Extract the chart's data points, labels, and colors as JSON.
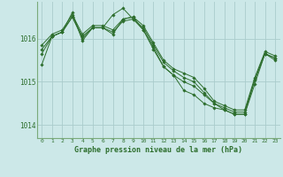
{
  "background_color": "#cce8e8",
  "plot_bg_color": "#cce8e8",
  "grid_color": "#aacccc",
  "line_color": "#2d6e2d",
  "marker_color": "#2d6e2d",
  "xlabel": "Graphe pression niveau de la mer (hPa)",
  "ylim": [
    1013.7,
    1016.85
  ],
  "yticks": [
    1014,
    1015,
    1016
  ],
  "xlim": [
    -0.5,
    23.5
  ],
  "xticks": [
    0,
    1,
    2,
    3,
    4,
    5,
    6,
    7,
    8,
    9,
    10,
    11,
    12,
    13,
    14,
    15,
    16,
    17,
    18,
    19,
    20,
    21,
    22,
    23
  ],
  "series": [
    [
      1015.75,
      1016.05,
      1016.15,
      1016.5,
      1016.05,
      1016.25,
      1016.25,
      1016.15,
      1016.4,
      1016.45,
      1016.25,
      1015.85,
      1015.45,
      1015.25,
      1015.1,
      1015.0,
      1014.75,
      1014.5,
      1014.4,
      1014.3,
      1014.3,
      1015.05,
      1015.65,
      1015.55
    ],
    [
      1015.85,
      1016.1,
      1016.2,
      1016.55,
      1016.1,
      1016.3,
      1016.3,
      1016.2,
      1016.45,
      1016.5,
      1016.3,
      1015.9,
      1015.5,
      1015.3,
      1015.2,
      1015.1,
      1014.85,
      1014.55,
      1014.45,
      1014.35,
      1014.35,
      1015.1,
      1015.7,
      1015.6
    ],
    [
      1015.4,
      1016.05,
      1016.15,
      1016.6,
      1015.95,
      1016.25,
      1016.25,
      1016.55,
      1016.7,
      1016.45,
      1016.2,
      1015.75,
      1015.35,
      1015.15,
      1014.8,
      1014.7,
      1014.5,
      1014.4,
      1014.35,
      1014.25,
      1014.25,
      1014.95,
      1015.65,
      1015.5
    ],
    [
      1015.65,
      1016.05,
      1016.15,
      1016.5,
      1016.0,
      1016.25,
      1016.25,
      1016.1,
      1016.45,
      1016.5,
      1016.2,
      1015.8,
      1015.35,
      1015.15,
      1015.0,
      1014.9,
      1014.7,
      1014.5,
      1014.35,
      1014.25,
      1014.25,
      1015.05,
      1015.65,
      1015.55
    ]
  ]
}
